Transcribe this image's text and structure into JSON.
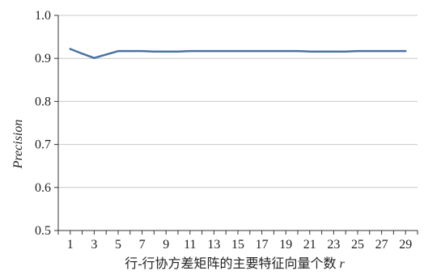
{
  "chart_data": {
    "type": "line",
    "title": "",
    "xlabel": "行-行协方差矩阵的主要特征向量个数 r",
    "xlabel_parts": {
      "text": "行-行协方差矩阵的主要特征向量个数 ",
      "var": "r"
    },
    "ylabel": "Precision",
    "x_ticks": [
      "1",
      "3",
      "5",
      "7",
      "9",
      "11",
      "13",
      "15",
      "17",
      "19",
      "21",
      "23",
      "25",
      "27",
      "29"
    ],
    "y_ticks": [
      "0.5",
      "0.6",
      "0.7",
      "0.8",
      "0.9",
      "1.0"
    ],
    "xlim": [
      0,
      30
    ],
    "ylim": [
      0.5,
      1.0
    ],
    "grid": "horizontal",
    "colors": {
      "line": "#4A72A6",
      "grid": "#c8c8c8",
      "axis": "#333333"
    },
    "series": [
      {
        "x": [
          1,
          2,
          3,
          4,
          5,
          6,
          7,
          8,
          9,
          10,
          11,
          12,
          13,
          14,
          15,
          16,
          17,
          18,
          19,
          20,
          21,
          22,
          23,
          24,
          25,
          26,
          27,
          28,
          29
        ],
        "values": [
          0.922,
          0.911,
          0.901,
          0.909,
          0.917,
          0.917,
          0.917,
          0.916,
          0.916,
          0.916,
          0.917,
          0.917,
          0.917,
          0.917,
          0.917,
          0.917,
          0.917,
          0.917,
          0.917,
          0.917,
          0.916,
          0.916,
          0.916,
          0.916,
          0.917,
          0.917,
          0.917,
          0.917,
          0.917
        ]
      }
    ]
  }
}
